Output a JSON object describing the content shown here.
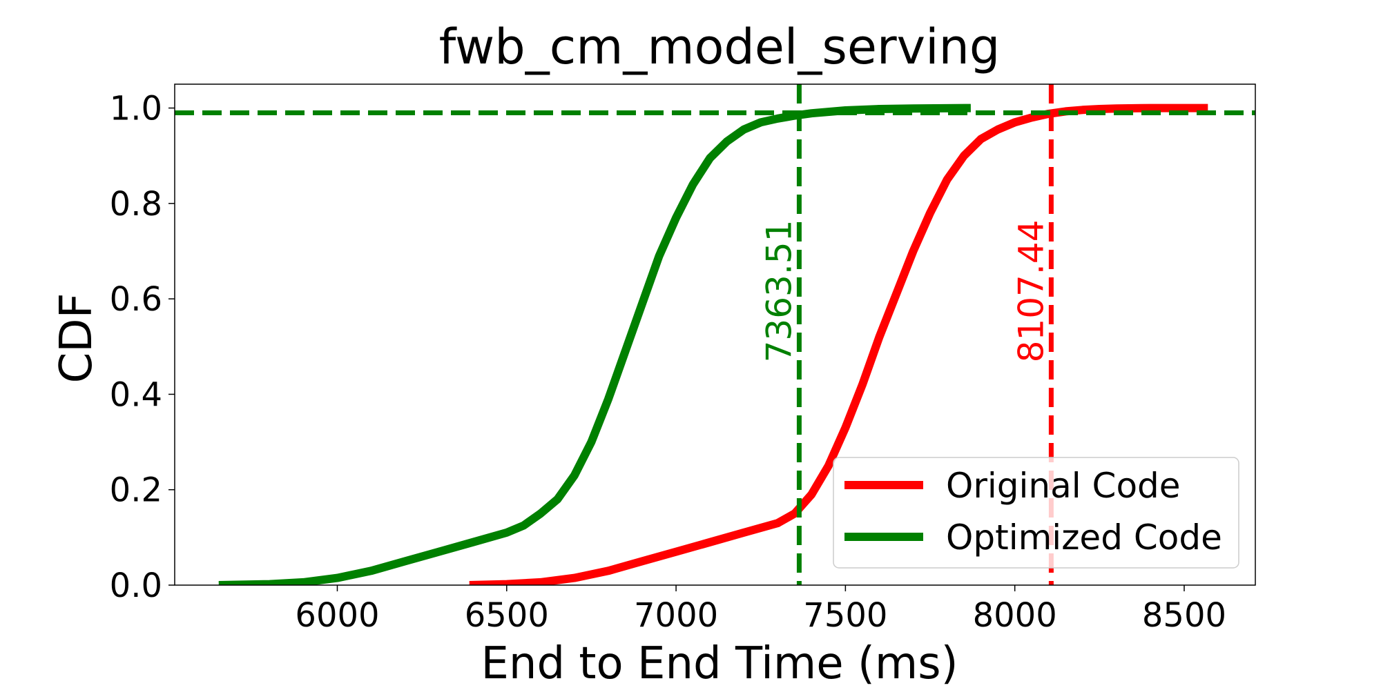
{
  "chart_data": {
    "type": "line",
    "title": "fwb_cm_model_serving",
    "xlabel": "End to End Time (ms)",
    "ylabel": "CDF",
    "xlim": [
      5520,
      8710
    ],
    "ylim": [
      0.0,
      1.05
    ],
    "xticks": [
      6000,
      6500,
      7000,
      7500,
      8000,
      8500
    ],
    "xtick_labels": [
      "6000",
      "6500",
      "7000",
      "7500",
      "8000",
      "8500"
    ],
    "yticks": [
      0.0,
      0.2,
      0.4,
      0.6,
      0.8,
      1.0
    ],
    "ytick_labels": [
      "0.0",
      "0.2",
      "0.4",
      "0.6",
      "0.8",
      "1.0"
    ],
    "grid": false,
    "legend_position": "lower-right",
    "series": [
      {
        "name": "Original Code",
        "color": "#ff0000",
        "x": [
          6390,
          6500,
          6600,
          6700,
          6800,
          6900,
          7000,
          7100,
          7200,
          7300,
          7350,
          7400,
          7450,
          7500,
          7550,
          7600,
          7650,
          7700,
          7750,
          7800,
          7850,
          7900,
          7950,
          8000,
          8050,
          8100,
          8150,
          8200,
          8250,
          8300,
          8400,
          8500,
          8570
        ],
        "y": [
          0.0,
          0.002,
          0.006,
          0.015,
          0.03,
          0.05,
          0.07,
          0.09,
          0.11,
          0.13,
          0.15,
          0.19,
          0.25,
          0.33,
          0.42,
          0.52,
          0.61,
          0.7,
          0.78,
          0.85,
          0.9,
          0.935,
          0.955,
          0.97,
          0.98,
          0.988,
          0.993,
          0.996,
          0.998,
          0.999,
          1.0,
          1.0,
          1.0
        ]
      },
      {
        "name": "Optimized Code",
        "color": "#008000",
        "x": [
          5650,
          5800,
          5900,
          6000,
          6100,
          6200,
          6300,
          6400,
          6500,
          6550,
          6600,
          6650,
          6700,
          6750,
          6800,
          6850,
          6900,
          6950,
          7000,
          7050,
          7100,
          7150,
          7200,
          7250,
          7300,
          7350,
          7400,
          7500,
          7600,
          7700,
          7870
        ],
        "y": [
          0.0,
          0.002,
          0.006,
          0.015,
          0.03,
          0.05,
          0.07,
          0.09,
          0.11,
          0.125,
          0.15,
          0.18,
          0.23,
          0.3,
          0.39,
          0.49,
          0.59,
          0.69,
          0.77,
          0.84,
          0.895,
          0.93,
          0.955,
          0.97,
          0.978,
          0.984,
          0.989,
          0.995,
          0.998,
          0.999,
          1.0
        ]
      }
    ],
    "reference_lines": [
      {
        "orientation": "vertical",
        "x": 7363.51,
        "label": "7363.51",
        "color": "#008000"
      },
      {
        "orientation": "vertical",
        "x": 8107.44,
        "label": "8107.44",
        "color": "#ff0000"
      },
      {
        "orientation": "horizontal",
        "y": 0.99,
        "color": "#008000"
      }
    ]
  }
}
